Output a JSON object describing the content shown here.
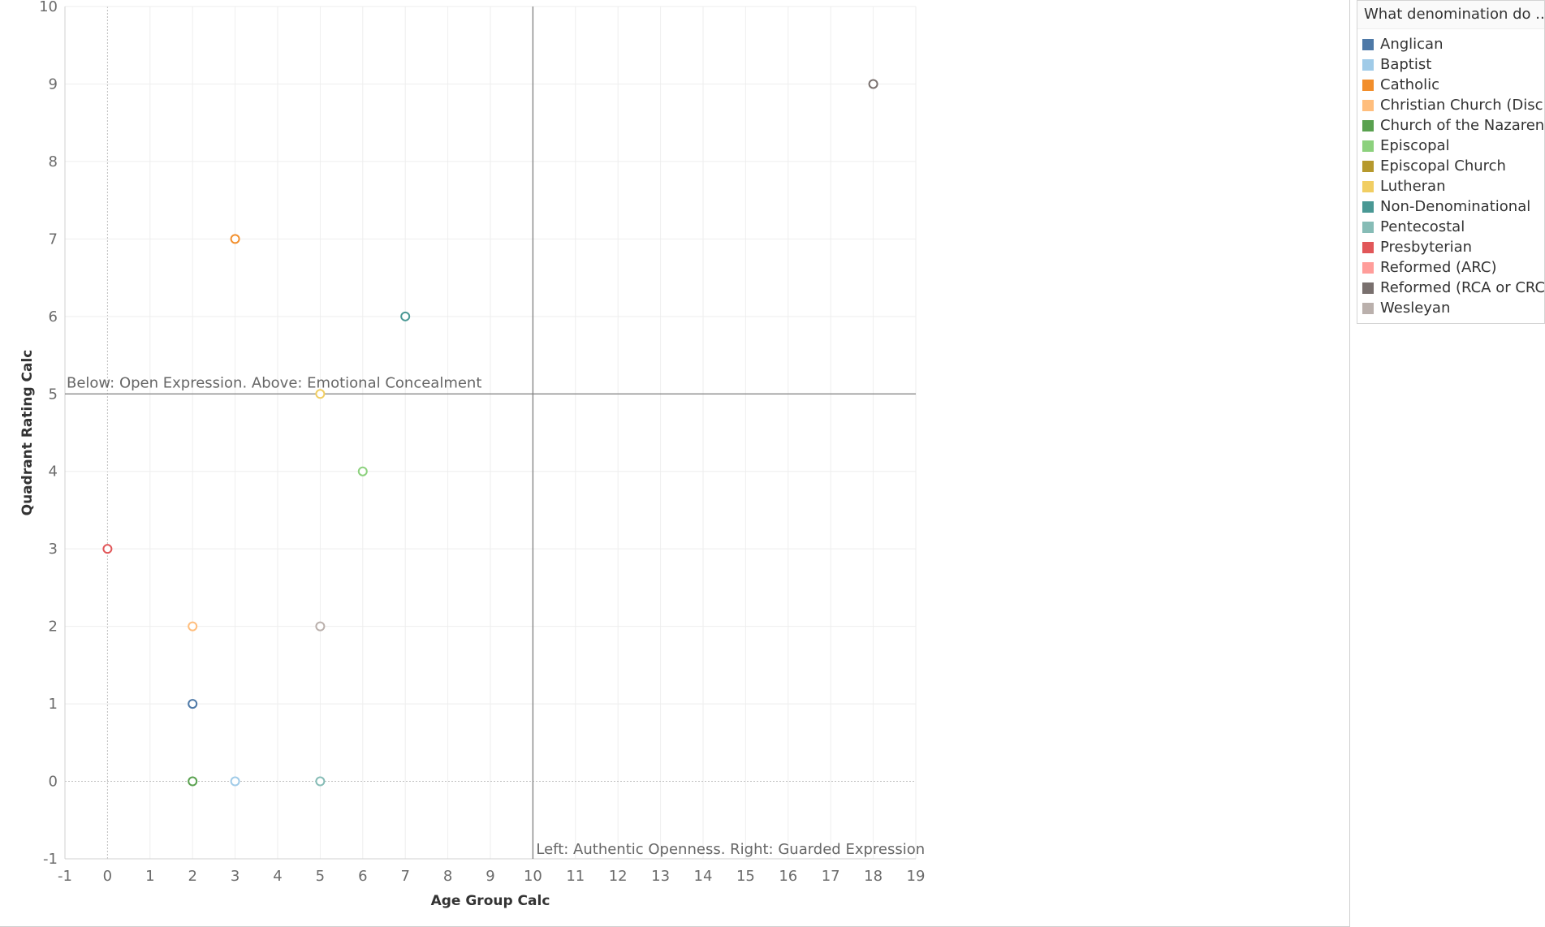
{
  "chart_data": {
    "type": "scatter",
    "xlabel": "Age Group Calc",
    "ylabel": "Quadrant Rating Calc",
    "xlim": [
      -1,
      19
    ],
    "ylim": [
      -1,
      10
    ],
    "x_ticks": [
      -1,
      0,
      1,
      2,
      3,
      4,
      5,
      6,
      7,
      8,
      9,
      10,
      11,
      12,
      13,
      14,
      15,
      16,
      17,
      18,
      19
    ],
    "y_ticks": [
      -1,
      0,
      1,
      2,
      3,
      4,
      5,
      6,
      7,
      8,
      9,
      10
    ],
    "grid": true,
    "marker": "hollow-circle",
    "reference_lines": [
      {
        "axis": "y",
        "value": 5,
        "label": "Below: Open Expression. Above: Emotional Concealment"
      },
      {
        "axis": "x",
        "value": 10,
        "label": "Left: Authentic Openness. Right: Guarded Expression"
      }
    ],
    "legend": {
      "title": "What denomination do ...",
      "placement": "right",
      "items": [
        {
          "name": "Anglican",
          "color": "#4e79a7"
        },
        {
          "name": "Baptist",
          "color": "#a0cbe8"
        },
        {
          "name": "Catholic",
          "color": "#f28e2b"
        },
        {
          "name": "Christian Church (Disc..",
          "color": "#ffbe7d"
        },
        {
          "name": "Church of the Nazarene",
          "color": "#59a14f"
        },
        {
          "name": "Episcopal",
          "color": "#8cd17d"
        },
        {
          "name": "Episcopal Church",
          "color": "#b6992d"
        },
        {
          "name": "Lutheran",
          "color": "#f1ce63"
        },
        {
          "name": "Non-Denominational",
          "color": "#499894"
        },
        {
          "name": "Pentecostal",
          "color": "#86bcb6"
        },
        {
          "name": "Presbyterian",
          "color": "#e15759"
        },
        {
          "name": "Reformed (ARC)",
          "color": "#ff9d9a"
        },
        {
          "name": "Reformed (RCA or CRC)",
          "color": "#79706e"
        },
        {
          "name": "Wesleyan",
          "color": "#bab0ac"
        }
      ]
    },
    "series": [
      {
        "name": "Anglican",
        "color": "#4e79a7",
        "points": [
          [
            2,
            1
          ]
        ]
      },
      {
        "name": "Baptist",
        "color": "#a0cbe8",
        "points": [
          [
            3,
            0
          ]
        ]
      },
      {
        "name": "Catholic",
        "color": "#f28e2b",
        "points": [
          [
            3,
            7
          ]
        ]
      },
      {
        "name": "Christian Church (Disc..",
        "color": "#ffbe7d",
        "points": [
          [
            2,
            2
          ]
        ]
      },
      {
        "name": "Church of the Nazarene",
        "color": "#59a14f",
        "points": [
          [
            2,
            0
          ]
        ]
      },
      {
        "name": "Episcopal",
        "color": "#8cd17d",
        "points": [
          [
            6,
            4
          ]
        ]
      },
      {
        "name": "Lutheran",
        "color": "#f1ce63",
        "points": [
          [
            5,
            5
          ]
        ]
      },
      {
        "name": "Non-Denominational",
        "color": "#499894",
        "points": [
          [
            7,
            6
          ]
        ]
      },
      {
        "name": "Pentecostal",
        "color": "#86bcb6",
        "points": [
          [
            5,
            0
          ]
        ]
      },
      {
        "name": "Presbyterian",
        "color": "#e15759",
        "points": [
          [
            0,
            3
          ]
        ]
      },
      {
        "name": "Reformed (RCA or CRC)",
        "color": "#79706e",
        "points": [
          [
            18,
            9
          ]
        ]
      },
      {
        "name": "Wesleyan",
        "color": "#bab0ac",
        "points": [
          [
            5,
            2
          ]
        ]
      }
    ]
  }
}
